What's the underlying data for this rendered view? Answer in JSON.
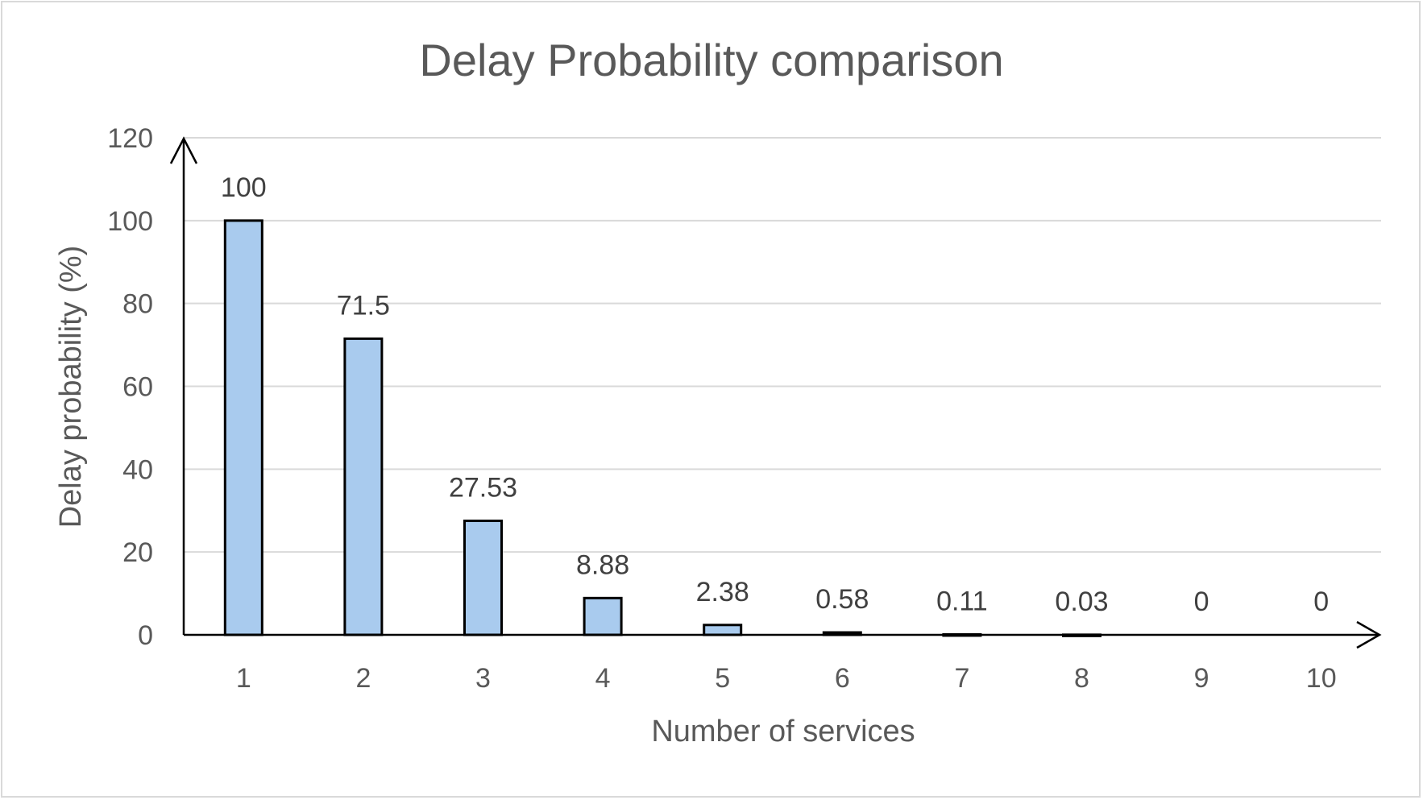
{
  "chart_data": {
    "type": "bar",
    "title": "Delay Probability comparison",
    "xlabel": "Number of services",
    "ylabel": "Delay probability (%)",
    "categories": [
      "1",
      "2",
      "3",
      "4",
      "5",
      "6",
      "7",
      "8",
      "9",
      "10"
    ],
    "values": [
      100,
      71.5,
      27.53,
      8.88,
      2.38,
      0.58,
      0.11,
      0.03,
      0,
      0
    ],
    "data_labels": [
      "100",
      "71.5",
      "27.53",
      "8.88",
      "2.38",
      "0.58",
      "0.11",
      "0.03",
      "0",
      "0"
    ],
    "ylim": [
      0,
      120
    ],
    "yticks": [
      "0",
      "20",
      "40",
      "60",
      "80",
      "100",
      "120"
    ],
    "grid": true,
    "bar_color": "#a9cbee",
    "bar_edge_color": "#000000"
  }
}
